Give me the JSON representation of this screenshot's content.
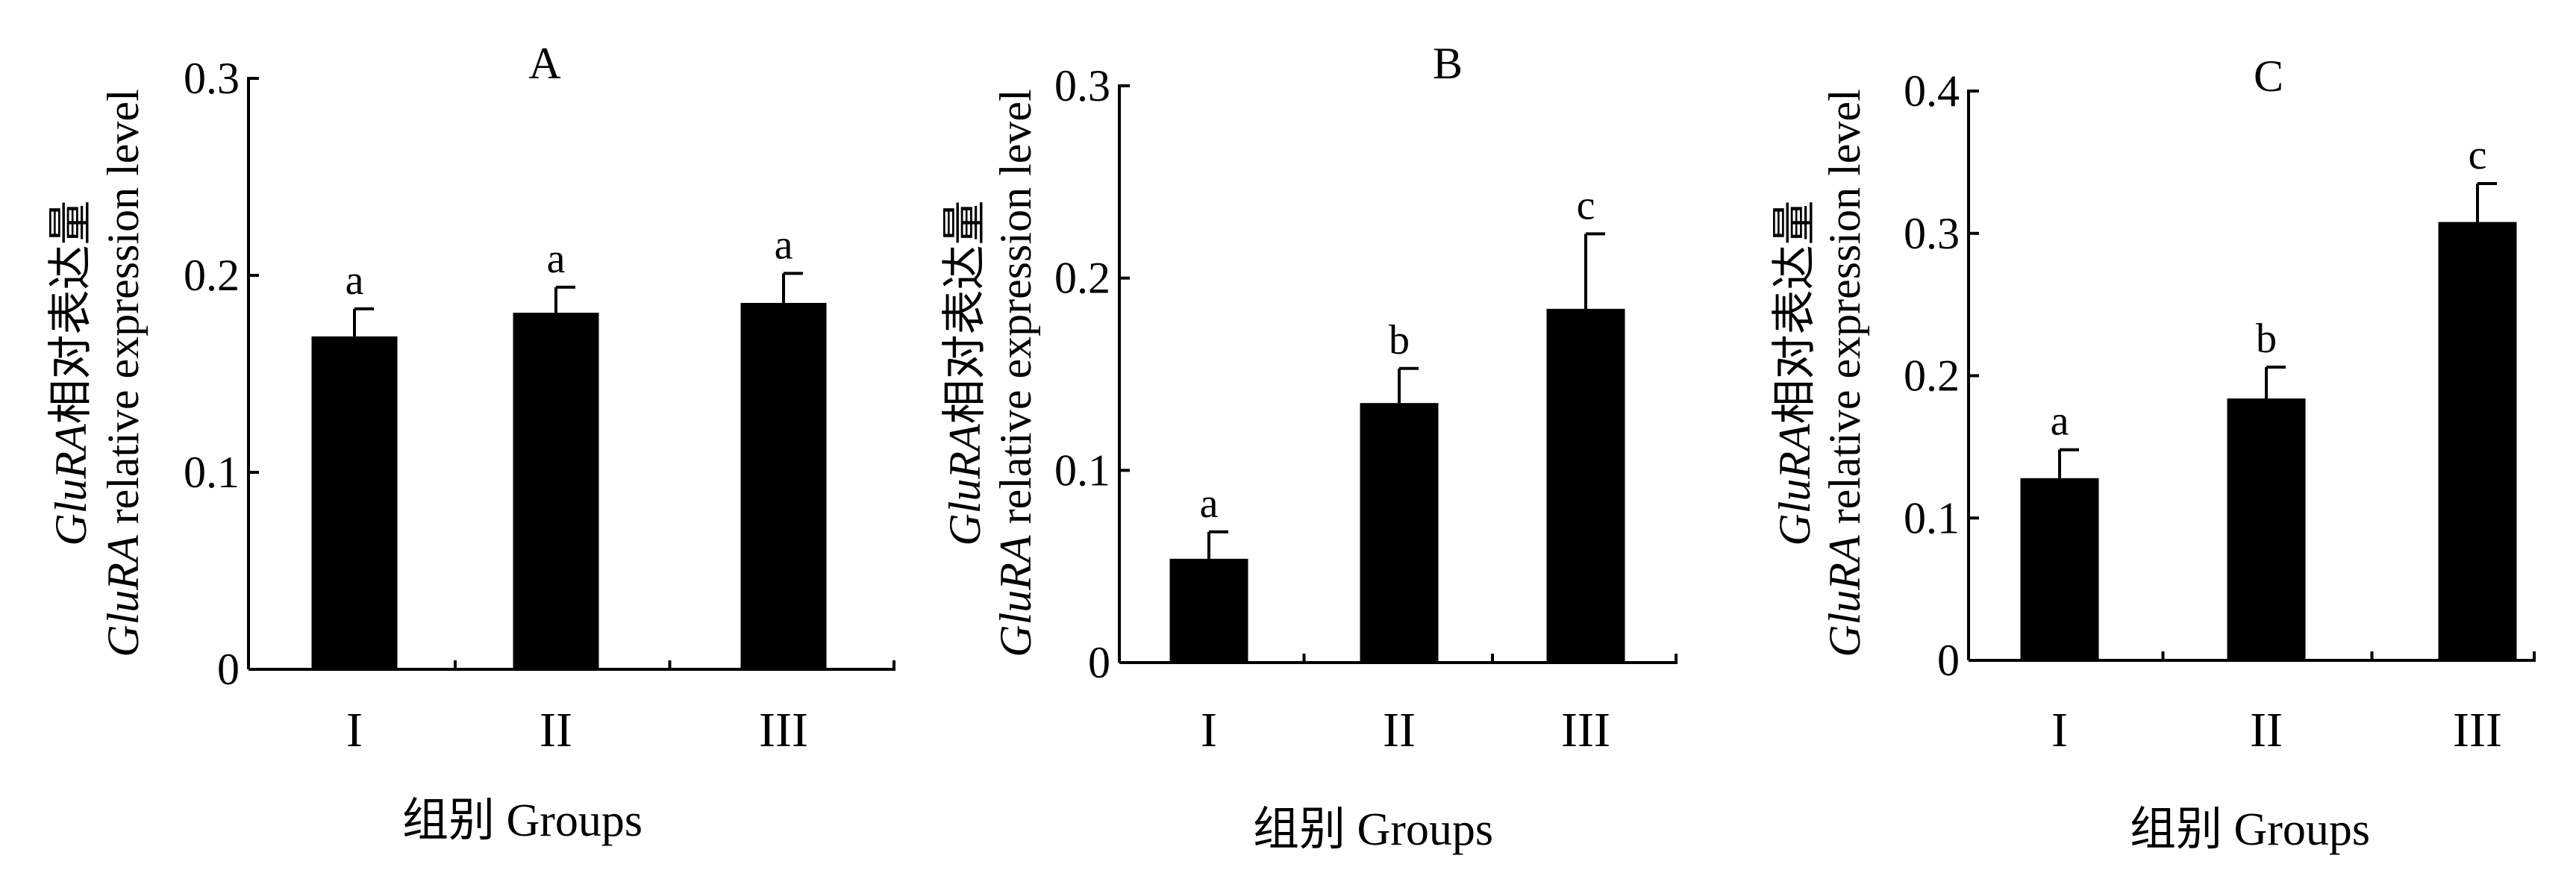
{
  "chart_data": [
    {
      "type": "bar",
      "title": "A",
      "categories": [
        "I",
        "II",
        "III"
      ],
      "values": [
        0.169,
        0.181,
        0.186
      ],
      "errors": [
        0.014,
        0.013,
        0.015
      ],
      "significance": [
        "a",
        "a",
        "a"
      ],
      "xlabel": "组别 Groups",
      "ylabel_line1": {
        "gene": "GluRA",
        "text": "相对表达量"
      },
      "ylabel_line2": {
        "gene": "GluRA",
        "text": " relative expression level"
      },
      "ylim": [
        0,
        0.3
      ],
      "yticks": [
        "0",
        "0.1",
        "0.2",
        "0.3"
      ],
      "ytick_values": [
        0,
        0.1,
        0.2,
        0.3
      ],
      "bar_color": "#000000",
      "grid": false
    },
    {
      "type": "bar",
      "title": "B",
      "categories": [
        "I",
        "II",
        "III"
      ],
      "values": [
        0.054,
        0.135,
        0.184
      ],
      "errors": [
        0.014,
        0.018,
        0.039
      ],
      "significance": [
        "a",
        "b",
        "c"
      ],
      "xlabel": "组别 Groups",
      "ylabel_line1": {
        "gene": "GluRA",
        "text": "相对表达量"
      },
      "ylabel_line2": {
        "gene": "GluRA",
        "text": " relative expression level"
      },
      "ylim": [
        0,
        0.3
      ],
      "yticks": [
        "0",
        "0.1",
        "0.2",
        "0.3"
      ],
      "ytick_values": [
        0,
        0.1,
        0.2,
        0.3
      ],
      "bar_color": "#000000",
      "grid": false
    },
    {
      "type": "bar",
      "title": "C",
      "categories": [
        "I",
        "II",
        "III"
      ],
      "values": [
        0.128,
        0.184,
        0.308
      ],
      "errors": [
        0.02,
        0.022,
        0.027
      ],
      "significance": [
        "a",
        "b",
        "c"
      ],
      "xlabel": "组别 Groups",
      "ylabel_line1": {
        "gene": "GluRA",
        "text": "相对表达量"
      },
      "ylabel_line2": {
        "gene": "GluRA",
        "text": " relative expression level"
      },
      "ylim": [
        0,
        0.4
      ],
      "yticks": [
        "0",
        "0.1",
        "0.2",
        "0.3",
        "0.4"
      ],
      "ytick_values": [
        0,
        0.1,
        0.2,
        0.3,
        0.4
      ],
      "bar_color": "#000000",
      "grid": false
    }
  ]
}
